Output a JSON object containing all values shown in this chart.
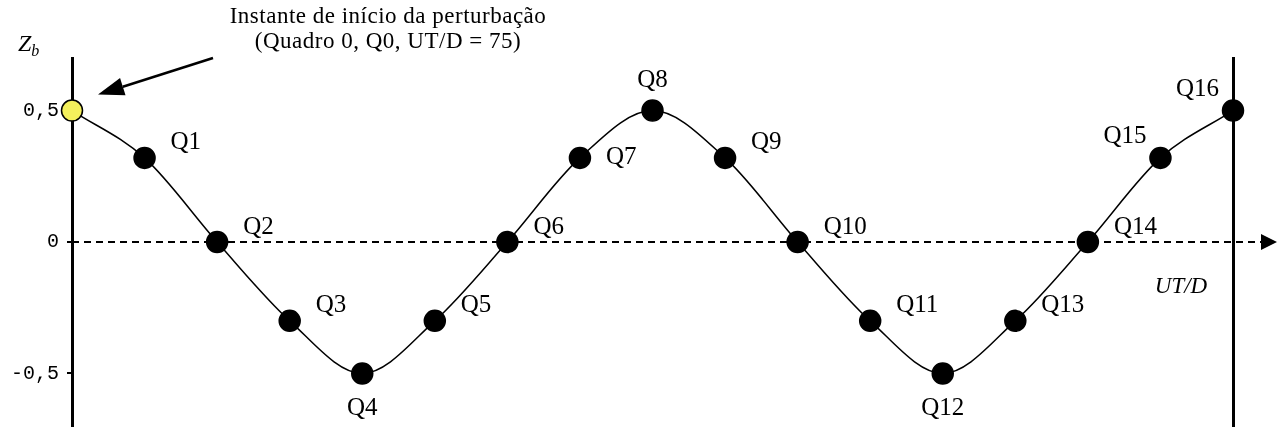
{
  "chart_data": {
    "type": "line",
    "ylabel": "Z$_{b}$",
    "xlabel": "UT/D",
    "annotations": [
      "Instante de início da perturbação\n(Quadro 0, Q0, UT/D = 75)"
    ],
    "categories": [
      null,
      null,
      null,
      null,
      null,
      null,
      null,
      null,
      null,
      null,
      null,
      null,
      null,
      null,
      null,
      null,
      null
    ],
    "series": [
      {
        "color": "#000000",
        "values": [
          0.5,
          0.32,
          0,
          -0.3,
          -0.5,
          -0.3,
          0,
          0.32,
          0.5,
          0.32,
          0,
          -0.3,
          -0.5,
          -0.3,
          0,
          0.32,
          0.5
        ],
        "colors": [
          "#f4f05c",
          "#000000",
          "#000000",
          "#000000",
          "#000000",
          "#000000",
          "#000000",
          "#000000",
          "#000000",
          "#000000",
          "#000000",
          "#000000",
          "#000000",
          "#000000",
          "#000000",
          "#000000",
          "#000000"
        ],
        "value_labels": [
          null,
          "Q1",
          "Q2",
          "Q3",
          "Q4",
          "Q5",
          "Q6",
          "Q7",
          "Q8",
          "Q9",
          "Q10",
          "Q11",
          "Q12",
          "Q13",
          "Q14",
          "Q15",
          "Q16"
        ]
      }
    ],
    "ylim": [
      -0.7,
      0.7
    ],
    "yticks": [
      {
        "value": -0.5,
        "label": "-0,5"
      },
      0,
      {
        "value": 0.5,
        "label": "0,5"
      }
    ],
    "ref_lines": [
      {
        "axis": "y",
        "value": 0,
        "line_style": "dashed",
        "color": "#000000"
      }
    ],
    "grid": false,
    "legend": false,
    "marker": "circle",
    "line_style": "solid"
  }
}
